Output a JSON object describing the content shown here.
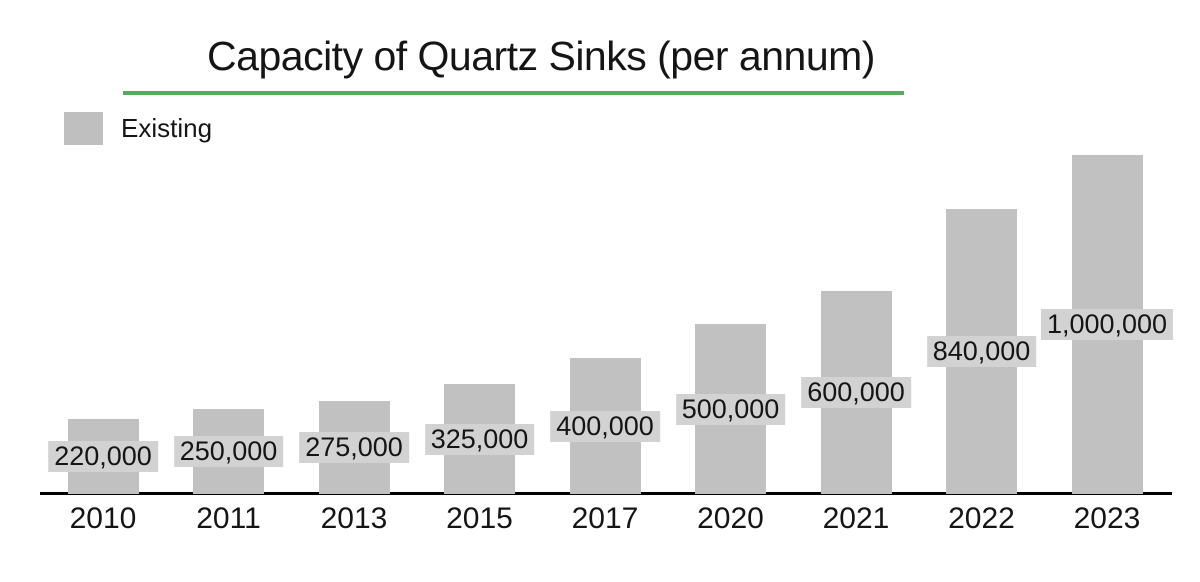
{
  "title": {
    "text": "Capacity of Quartz Sinks (per annum)"
  },
  "legend": {
    "items": [
      {
        "label": "Existing",
        "swatch_color": "#bfbfbf"
      }
    ]
  },
  "colors": {
    "accent_green": "#57a95f",
    "axis_black": "#000000",
    "bar_gray": "#c1c1c1",
    "label_chip_gray": "#d2d2d2",
    "text": "#151515"
  },
  "chart_data": {
    "type": "bar",
    "title": "Capacity of Quartz Sinks (per annum)",
    "series_name": "Existing",
    "categories": [
      "2010",
      "2011",
      "2013",
      "2015",
      "2017",
      "2020",
      "2021",
      "2022",
      "2023"
    ],
    "values": [
      220000,
      250000,
      275000,
      325000,
      400000,
      500000,
      600000,
      840000,
      1000000
    ],
    "value_labels": [
      "220,000",
      "250,000",
      "275,000",
      "325,000",
      "400,000",
      "500,000",
      "600,000",
      "840,000",
      "1,000,000"
    ],
    "xlabel": "",
    "ylabel": "",
    "ylim": [
      0,
      1000000
    ],
    "grid": false,
    "legend_position": "top-left",
    "data_label_position": "center-of-bar",
    "bar_color": "#c1c1c1",
    "data_label_background": "#d2d2d2"
  }
}
